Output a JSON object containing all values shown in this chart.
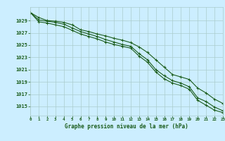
{
  "title": "Graphe pression niveau de la mer (hPa)",
  "bg_color": "#cceeff",
  "grid_color": "#aacccc",
  "line_color": "#1a5c1a",
  "marker_color": "#1a5c1a",
  "text_color": "#1a5c1a",
  "xlim": [
    0,
    23
  ],
  "ylim": [
    1013.5,
    1031.2
  ],
  "yticks": [
    1015,
    1017,
    1019,
    1021,
    1023,
    1025,
    1027,
    1029
  ],
  "xticks": [
    0,
    1,
    2,
    3,
    4,
    5,
    6,
    7,
    8,
    9,
    10,
    11,
    12,
    13,
    14,
    15,
    16,
    17,
    18,
    19,
    20,
    21,
    22,
    23
  ],
  "hours": [
    0,
    1,
    2,
    3,
    4,
    5,
    6,
    7,
    8,
    9,
    10,
    11,
    12,
    13,
    14,
    15,
    16,
    17,
    18,
    19,
    20,
    21,
    22,
    23
  ],
  "series1": [
    1030.3,
    1029.5,
    1029.0,
    1028.9,
    1028.7,
    1028.3,
    1027.5,
    1027.2,
    1026.8,
    1026.5,
    1026.1,
    1025.8,
    1025.4,
    1024.7,
    1023.8,
    1022.6,
    1021.4,
    1020.2,
    1019.8,
    1019.4,
    1018.0,
    1017.2,
    1016.2,
    1015.5
  ],
  "series2": [
    1030.3,
    1029.1,
    1028.9,
    1028.7,
    1028.4,
    1027.8,
    1027.2,
    1026.8,
    1026.4,
    1025.9,
    1025.5,
    1025.1,
    1024.8,
    1023.6,
    1022.6,
    1021.0,
    1020.0,
    1019.2,
    1018.8,
    1018.2,
    1016.4,
    1015.8,
    1014.9,
    1014.3
  ],
  "series3": [
    1030.3,
    1028.8,
    1028.6,
    1028.3,
    1028.0,
    1027.4,
    1026.8,
    1026.4,
    1026.0,
    1025.5,
    1025.1,
    1024.8,
    1024.5,
    1023.2,
    1022.2,
    1020.6,
    1019.5,
    1018.8,
    1018.4,
    1017.8,
    1016.0,
    1015.2,
    1014.4,
    1014.0
  ]
}
